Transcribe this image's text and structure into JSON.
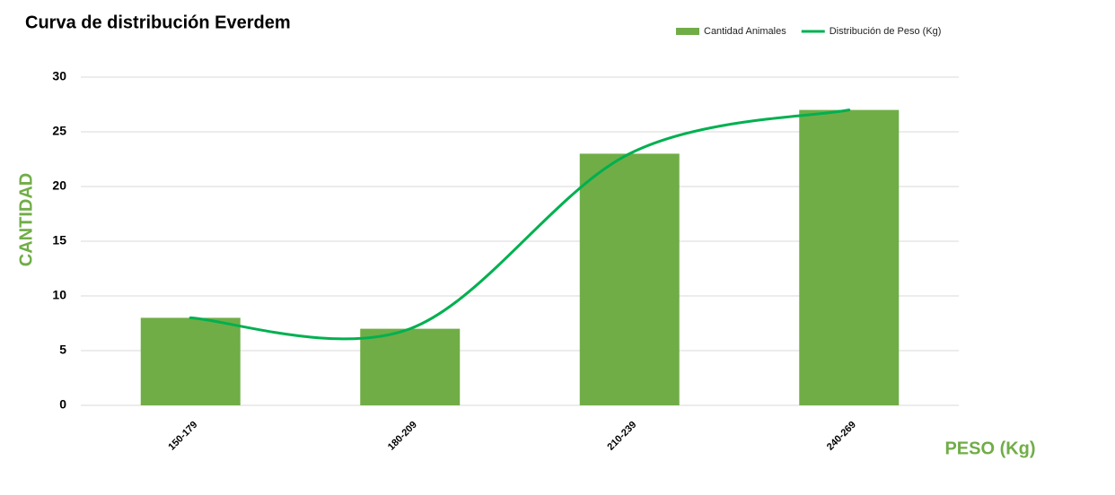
{
  "chart_data": {
    "type": "bar",
    "title": "Curva de distribución Everdem",
    "y_label": "CANTIDAD",
    "x_label": "PESO (Kg)",
    "categories": [
      "150-179",
      "180-209",
      "210-239",
      "240-269"
    ],
    "series": [
      {
        "name": "Cantidad Animales",
        "type": "bar",
        "color": "#70ad47",
        "values": [
          8,
          7,
          23,
          27
        ]
      },
      {
        "name": "Distribución de Peso (Kg)",
        "type": "line",
        "smooth": true,
        "color": "#00b050",
        "values": [
          8,
          7,
          23,
          27
        ]
      }
    ],
    "ylim": [
      0,
      30
    ],
    "yticks": [
      0,
      5,
      10,
      15,
      20,
      25,
      30
    ],
    "grid": true,
    "legend": "top-right"
  }
}
